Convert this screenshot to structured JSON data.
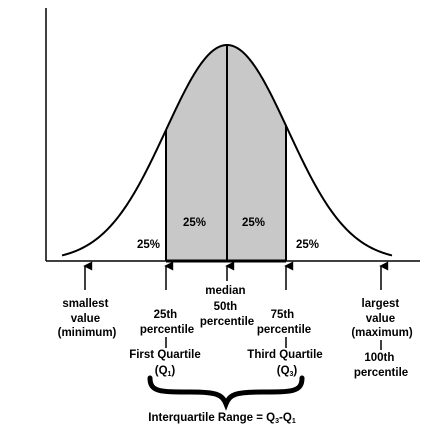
{
  "regions": {
    "left_tail": "25%",
    "q1_to_median": "25%",
    "median_to_q3": "25%",
    "right_tail": "25%"
  },
  "labels": {
    "minimum": [
      "smallest",
      "value",
      "(minimum)"
    ],
    "q1_percentile": [
      "25th",
      "percentile"
    ],
    "median": [
      "median",
      "50th",
      "percentile"
    ],
    "q3_percentile": [
      "75th",
      "percentile"
    ],
    "maximum": [
      "largest",
      "value",
      "(maximum)"
    ],
    "first_quartile": "First Quartile",
    "q1_symbol": "(Q",
    "q1_sub": "1",
    "third_quartile": "Third Quartile",
    "q3_symbol": "(Q",
    "q3_sub": "3",
    "close_paren": ")",
    "max_percentile": [
      "100th",
      "percentile"
    ]
  },
  "iqr": {
    "text": "Interquartile Range = Q",
    "sub_a": "3",
    "dash": "-Q",
    "sub_b": "1"
  },
  "colors": {
    "shaded": "#c8c8c8",
    "ink": "#000000"
  }
}
